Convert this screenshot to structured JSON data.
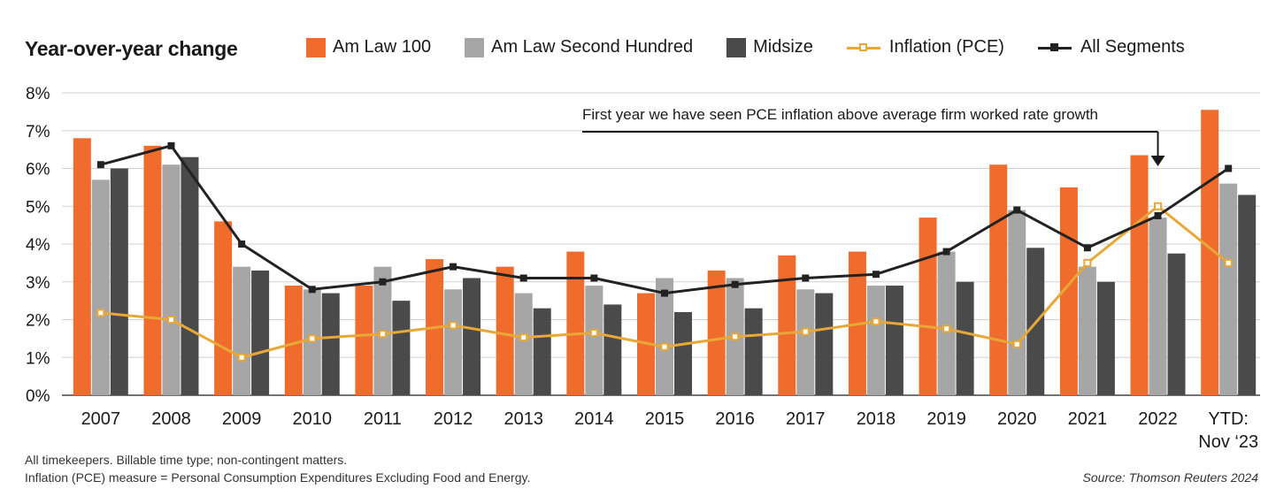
{
  "chart_data": {
    "type": "bar",
    "title": "Year-over-year change",
    "categories": [
      "2007",
      "2008",
      "2009",
      "2010",
      "2011",
      "2012",
      "2013",
      "2014",
      "2015",
      "2016",
      "2017",
      "2018",
      "2019",
      "2020",
      "2021",
      "2022",
      "YTD:\nNov ‘23"
    ],
    "series": [
      {
        "name": "Am Law 100",
        "kind": "bar",
        "color": "#ef6c2d",
        "values": [
          6.8,
          6.6,
          4.6,
          2.9,
          2.9,
          3.6,
          3.4,
          3.8,
          2.7,
          3.3,
          3.7,
          3.8,
          4.7,
          6.1,
          5.5,
          6.35,
          7.55
        ]
      },
      {
        "name": "Am Law Second Hundred",
        "kind": "bar",
        "color": "#a6a6a6",
        "values": [
          5.7,
          6.1,
          3.4,
          2.8,
          3.4,
          2.8,
          2.7,
          2.9,
          3.1,
          3.1,
          2.8,
          2.9,
          3.8,
          4.9,
          3.4,
          4.7,
          5.6
        ]
      },
      {
        "name": "Midsize",
        "kind": "bar",
        "color": "#4a4a4a",
        "values": [
          6.0,
          6.3,
          3.3,
          2.7,
          2.5,
          3.1,
          2.3,
          2.4,
          2.2,
          2.3,
          2.7,
          2.9,
          3.0,
          3.9,
          3.0,
          3.75,
          5.3
        ]
      },
      {
        "name": "Inflation (PCE)",
        "kind": "line",
        "color": "#e8a838",
        "values": [
          2.18,
          2.0,
          1.0,
          1.5,
          1.62,
          1.85,
          1.53,
          1.65,
          1.28,
          1.55,
          1.68,
          1.95,
          1.76,
          1.35,
          3.5,
          5.0,
          3.5
        ]
      },
      {
        "name": "All Segments",
        "kind": "line",
        "color": "#222222",
        "values": [
          6.1,
          6.6,
          4.0,
          2.8,
          3.0,
          3.4,
          3.1,
          3.1,
          2.7,
          2.93,
          3.1,
          3.2,
          3.8,
          4.9,
          3.9,
          4.75,
          6.0
        ]
      }
    ],
    "ylim": [
      0,
      8
    ],
    "yticks": [
      0,
      1,
      2,
      3,
      4,
      5,
      6,
      7,
      8
    ],
    "ytick_labels": [
      "0%",
      "1%",
      "2%",
      "3%",
      "4%",
      "5%",
      "6%",
      "7%",
      "8%"
    ],
    "grid": true,
    "legend_position": "top",
    "annotation": {
      "text": "First year we have seen PCE inflation above average firm worked rate growth",
      "target_category": "2022"
    }
  },
  "footnotes": {
    "line1": "All timekeepers. Billable time type; non-contingent matters.",
    "line2": "Inflation (PCE) measure =  Personal Consumption Expenditures Excluding Food and Energy.",
    "source": "Source: Thomson Reuters 2024"
  }
}
